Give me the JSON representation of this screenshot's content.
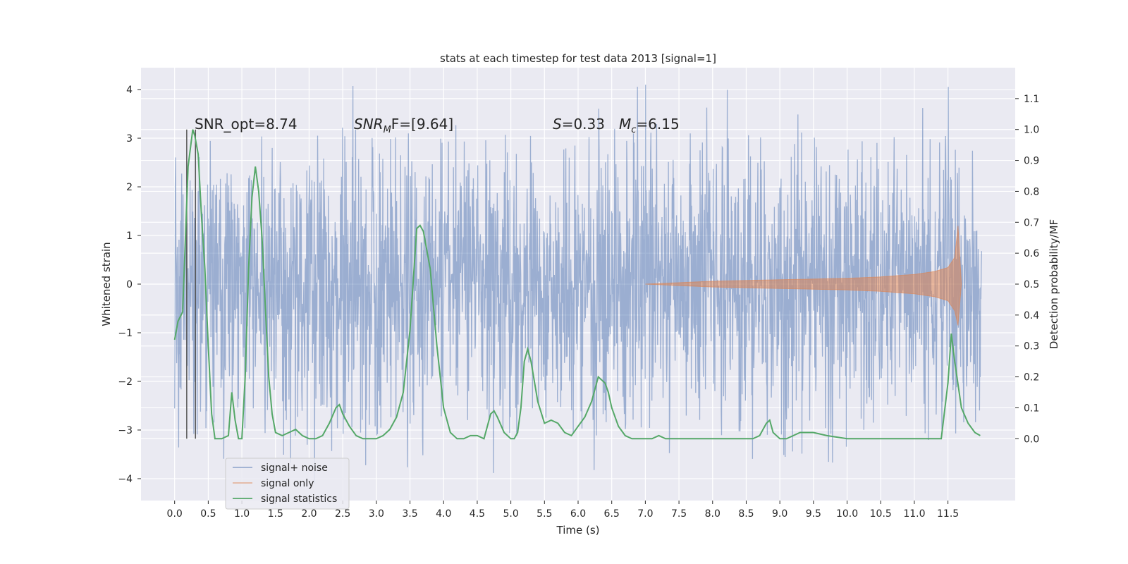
{
  "chart_data": {
    "type": "line",
    "title": "stats at each timestep for test data 2013 [signal=1]",
    "xlabel": "Time (s)",
    "ylabel": "Whitened strain",
    "ylabel_right": "Detection probability/MF",
    "xlim": [
      -0.5,
      12.5
    ],
    "ylim": [
      -4.45,
      4.45
    ],
    "ylim_right": [
      -0.2,
      1.2
    ],
    "grid": true,
    "legend_position": "bottom-left",
    "x_ticks": [
      "0.0",
      "0.5",
      "1.0",
      "1.5",
      "2.0",
      "2.5",
      "3.0",
      "3.5",
      "4.0",
      "4.5",
      "5.0",
      "5.5",
      "6.0",
      "6.5",
      "7.0",
      "7.5",
      "8.0",
      "8.5",
      "9.0",
      "9.5",
      "10.0",
      "10.5",
      "11.0",
      "11.5"
    ],
    "y_ticks": [
      "4",
      "3",
      "2",
      "1",
      "0",
      "−1",
      "−2",
      "−3",
      "−4"
    ],
    "y_ticks_right": [
      "1.1",
      "1.0",
      "0.9",
      "0.8",
      "0.7",
      "0.6",
      "0.5",
      "0.4",
      "0.3",
      "0.2",
      "0.1",
      "0.0"
    ],
    "annotations": {
      "snr_opt": "SNR_opt=8.74",
      "snr_mf_sym": "SNR",
      "snr_mf_sub": "M",
      "snr_mf_rest": "F=[9.64]",
      "s_sym": "S",
      "s_rest": "=0.33",
      "mc_sym": "M",
      "mc_sub": "c",
      "mc_rest": "=6.15"
    },
    "vertical_markers_x": [
      0.18,
      0.31
    ],
    "series": [
      {
        "name": "signal+ noise",
        "color": "#4c72b0",
        "amplitude_envelope": {
          "x": [
            0.0,
            12.0
          ],
          "core_abs": 1.3,
          "typical_peak_abs": 2.5,
          "max": 4.1,
          "min": -4.1
        }
      },
      {
        "name": "signal only",
        "color": "#dd8452",
        "x": [
          7.0,
          8.0,
          9.0,
          10.0,
          10.5,
          11.0,
          11.3,
          11.5,
          11.6,
          11.65,
          11.7
        ],
        "upper": [
          0.0,
          0.06,
          0.09,
          0.12,
          0.15,
          0.2,
          0.26,
          0.34,
          0.55,
          1.2,
          0.0
        ],
        "lower": [
          0.0,
          -0.06,
          -0.09,
          -0.12,
          -0.15,
          -0.2,
          -0.26,
          -0.34,
          -0.55,
          -0.85,
          0.0
        ]
      },
      {
        "name": "signal statistics",
        "color": "#55a868",
        "x": [
          0.0,
          0.05,
          0.12,
          0.2,
          0.27,
          0.3,
          0.35,
          0.4,
          0.45,
          0.5,
          0.55,
          0.6,
          0.7,
          0.8,
          0.85,
          0.9,
          0.95,
          1.0,
          1.05,
          1.1,
          1.15,
          1.2,
          1.25,
          1.3,
          1.35,
          1.4,
          1.45,
          1.5,
          1.6,
          1.7,
          1.8,
          1.9,
          2.0,
          2.1,
          2.2,
          2.3,
          2.4,
          2.45,
          2.5,
          2.6,
          2.7,
          2.8,
          3.0,
          3.1,
          3.2,
          3.3,
          3.4,
          3.5,
          3.6,
          3.65,
          3.7,
          3.8,
          3.9,
          4.0,
          4.1,
          4.2,
          4.3,
          4.4,
          4.5,
          4.6,
          4.7,
          4.75,
          4.8,
          4.9,
          5.0,
          5.05,
          5.1,
          5.15,
          5.2,
          5.25,
          5.3,
          5.4,
          5.5,
          5.6,
          5.7,
          5.8,
          5.9,
          6.0,
          6.1,
          6.2,
          6.3,
          6.4,
          6.45,
          6.5,
          6.6,
          6.7,
          6.8,
          6.9,
          7.0,
          7.1,
          7.2,
          7.3,
          7.5,
          7.7,
          8.0,
          8.3,
          8.6,
          8.7,
          8.8,
          8.85,
          8.9,
          9.0,
          9.1,
          9.2,
          9.3,
          9.4,
          9.5,
          9.7,
          10.0,
          10.5,
          11.0,
          11.4,
          11.5,
          11.55,
          11.6,
          11.7,
          11.8,
          11.9,
          11.98
        ],
        "values": [
          0.32,
          0.38,
          0.41,
          0.88,
          1.0,
          0.98,
          0.92,
          0.72,
          0.55,
          0.3,
          0.08,
          0.0,
          0.0,
          0.01,
          0.15,
          0.06,
          0.0,
          0.0,
          0.2,
          0.55,
          0.78,
          0.88,
          0.8,
          0.65,
          0.42,
          0.2,
          0.08,
          0.02,
          0.01,
          0.02,
          0.03,
          0.01,
          0.0,
          0.0,
          0.01,
          0.05,
          0.1,
          0.11,
          0.08,
          0.04,
          0.01,
          0.0,
          0.0,
          0.01,
          0.03,
          0.07,
          0.15,
          0.35,
          0.68,
          0.69,
          0.67,
          0.55,
          0.3,
          0.1,
          0.02,
          0.0,
          0.0,
          0.01,
          0.01,
          0.0,
          0.08,
          0.09,
          0.07,
          0.02,
          0.0,
          0.0,
          0.02,
          0.1,
          0.25,
          0.29,
          0.25,
          0.12,
          0.05,
          0.06,
          0.05,
          0.02,
          0.01,
          0.04,
          0.07,
          0.12,
          0.2,
          0.18,
          0.15,
          0.1,
          0.04,
          0.01,
          0.0,
          0.0,
          0.0,
          0.0,
          0.01,
          0.0,
          0.0,
          0.0,
          0.0,
          0.0,
          0.0,
          0.01,
          0.05,
          0.06,
          0.02,
          0.0,
          0.0,
          0.01,
          0.02,
          0.02,
          0.02,
          0.01,
          0.0,
          0.0,
          0.0,
          0.0,
          0.18,
          0.34,
          0.25,
          0.1,
          0.05,
          0.02,
          0.01
        ]
      }
    ]
  }
}
